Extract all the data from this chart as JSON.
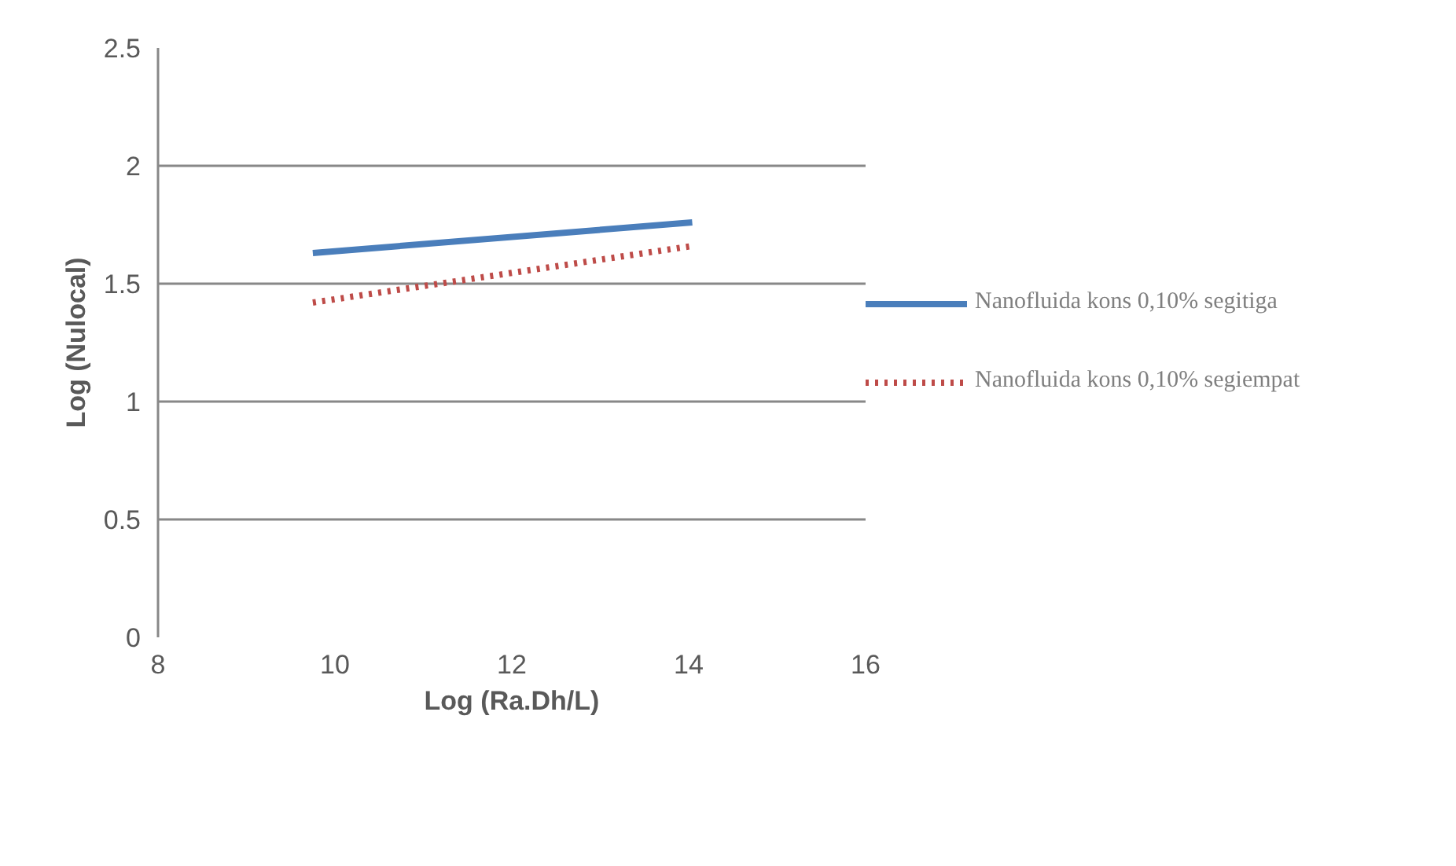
{
  "chart_data": {
    "type": "line",
    "xlabel": "Log (Ra.Dh/L)",
    "ylabel": "Log (Nulocal)",
    "xlim": [
      8,
      16
    ],
    "xticks": [
      8,
      10,
      12,
      14,
      16
    ],
    "ylim": [
      0,
      2.5
    ],
    "yticks": [
      0,
      0.5,
      1,
      1.5,
      2,
      2.5
    ],
    "grid": "y",
    "legend": "right",
    "x": [
      9.75,
      14.04
    ],
    "series": [
      {
        "name": "Nanofluida kons 0,10% segitiga",
        "color": "#4a7ebb",
        "values": [
          1.63,
          1.76
        ],
        "line_style": "solid"
      },
      {
        "name": "Nanofluida kons 0,10% segiempat",
        "color": "#be4b48",
        "values": [
          1.42,
          1.66
        ],
        "line_style": "dotted"
      }
    ]
  }
}
